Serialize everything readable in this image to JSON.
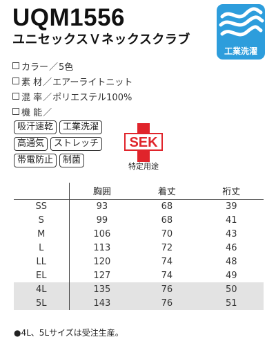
{
  "header": {
    "model": "UQM1556",
    "product": "ユニセックスＶネックスクラブ"
  },
  "badge": {
    "icon": "wave-icon",
    "label": "工業洗濯",
    "color": "#2d9ddc"
  },
  "specs": [
    {
      "key": "カラー",
      "value": "5色"
    },
    {
      "key": "素 材",
      "value": "エアーライトニット"
    },
    {
      "key": "混 率",
      "value": "ポリエステル100%"
    },
    {
      "key": "機 能",
      "value": ""
    }
  ],
  "spec_separator": "／",
  "functions": [
    [
      "吸汗速乾",
      "工業洗濯"
    ],
    [
      "高通気",
      "ストレッチ"
    ],
    [
      "帯電防止",
      "制菌"
    ]
  ],
  "sek": {
    "mark": "SEK",
    "caption": "特定用途",
    "color": "#e0242b"
  },
  "table": {
    "headers": [
      "",
      "胸囲",
      "着丈",
      "裄丈"
    ],
    "rows": [
      {
        "size": "SS",
        "chest": "93",
        "length": "68",
        "sleeve": "39",
        "highlight": false
      },
      {
        "size": "S",
        "chest": "99",
        "length": "68",
        "sleeve": "41",
        "highlight": false
      },
      {
        "size": "M",
        "chest": "106",
        "length": "70",
        "sleeve": "43",
        "highlight": false
      },
      {
        "size": "L",
        "chest": "113",
        "length": "72",
        "sleeve": "46",
        "highlight": false
      },
      {
        "size": "LL",
        "chest": "120",
        "length": "74",
        "sleeve": "48",
        "highlight": false
      },
      {
        "size": "EL",
        "chest": "127",
        "length": "74",
        "sleeve": "49",
        "highlight": false
      },
      {
        "size": "4L",
        "chest": "135",
        "length": "76",
        "sleeve": "50",
        "highlight": true
      },
      {
        "size": "5L",
        "chest": "143",
        "length": "76",
        "sleeve": "51",
        "highlight": true
      }
    ]
  },
  "note": "●4L、5Lサイズは受注生産。"
}
